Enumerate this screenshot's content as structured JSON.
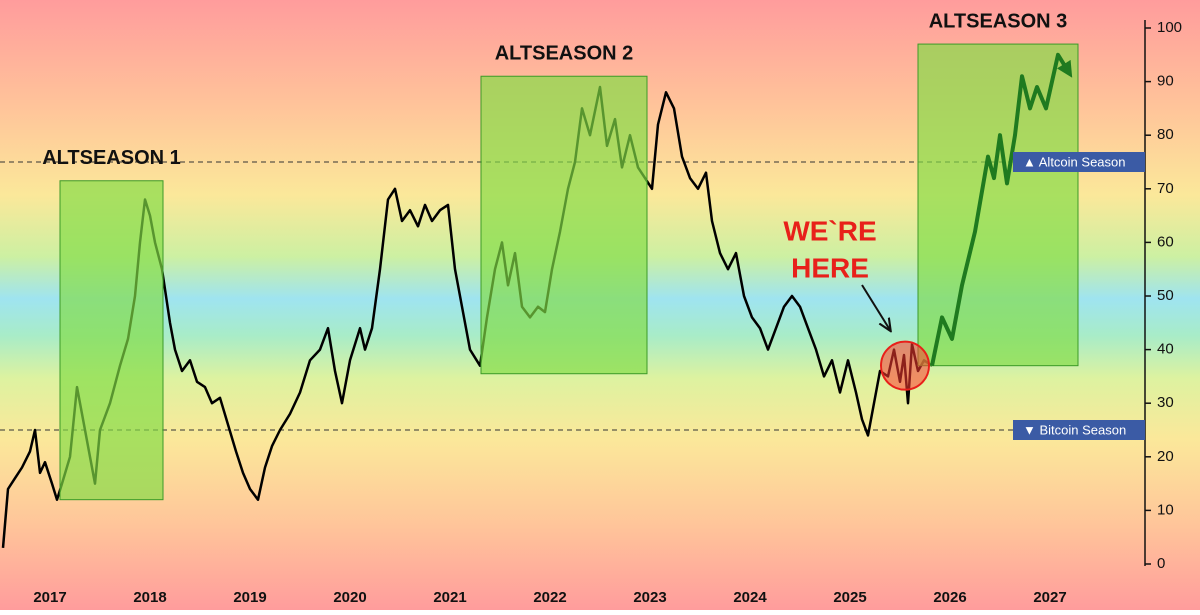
{
  "chart_data": {
    "type": "line",
    "xlim": [
      2016.5,
      2027.95
    ],
    "xticks": [
      2017,
      2018,
      2019,
      2020,
      2021,
      2022,
      2023,
      2024,
      2025,
      2026,
      2027
    ],
    "ylim": [
      0,
      100
    ],
    "yticks": [
      0,
      10,
      20,
      30,
      40,
      50,
      60,
      70,
      80,
      90,
      100
    ],
    "series": [
      {
        "color": "#000000",
        "x": [
          2016.53,
          2016.58,
          2016.65,
          2016.72,
          2016.8,
          2016.85,
          2016.9,
          2016.95,
          2017.02,
          2017.07,
          2017.12,
          2017.2,
          2017.27,
          2017.32,
          2017.38,
          2017.45,
          2017.5,
          2017.6,
          2017.7,
          2017.78,
          2017.85,
          2017.9,
          2017.95,
          2018.0,
          2018.05,
          2018.12,
          2018.2,
          2018.25,
          2018.32,
          2018.4,
          2018.47,
          2018.55,
          2018.62,
          2018.7,
          2018.78,
          2018.86,
          2018.93,
          2019.0,
          2019.08,
          2019.15,
          2019.22,
          2019.3,
          2019.4,
          2019.5,
          2019.6,
          2019.7,
          2019.78,
          2019.85,
          2019.92,
          2020.0,
          2020.1,
          2020.15,
          2020.22,
          2020.3,
          2020.38,
          2020.45,
          2020.52,
          2020.6,
          2020.68,
          2020.75,
          2020.82,
          2020.9,
          2020.98,
          2021.05,
          2021.12,
          2021.2,
          2021.3,
          2021.37,
          2021.45,
          2021.52,
          2021.58,
          2021.65,
          2021.72,
          2021.8,
          2021.88,
          2021.95,
          2022.02,
          2022.1,
          2022.18,
          2022.25,
          2022.32,
          2022.4,
          2022.5,
          2022.57,
          2022.65,
          2022.72,
          2022.8,
          2022.88,
          2022.95,
          2023.02,
          2023.08,
          2023.16,
          2023.24,
          2023.32,
          2023.4,
          2023.48,
          2023.56,
          2023.62,
          2023.7,
          2023.78,
          2023.86,
          2023.94,
          2024.02,
          2024.1,
          2024.18,
          2024.26,
          2024.34,
          2024.42,
          2024.5,
          2024.58,
          2024.66,
          2024.74,
          2024.82,
          2024.9,
          2024.98,
          2025.06,
          2025.12,
          2025.18,
          2025.24,
          2025.3,
          2025.38,
          2025.44,
          2025.5,
          2025.54,
          2025.58,
          2025.62,
          2025.68,
          2025.74,
          2025.82
        ],
        "values": [
          3,
          14,
          16,
          18,
          21,
          25,
          17,
          19,
          15,
          12,
          15,
          20,
          33,
          28,
          22,
          15,
          25,
          30,
          37,
          42,
          50,
          60,
          68,
          65,
          60,
          55,
          45,
          40,
          36,
          38,
          34,
          33,
          30,
          31,
          26,
          21,
          17,
          14,
          12,
          18,
          22,
          25,
          28,
          32,
          38,
          40,
          44,
          36,
          30,
          38,
          44,
          40,
          44,
          55,
          68,
          70,
          64,
          66,
          63,
          67,
          64,
          66,
          67,
          55,
          48,
          40,
          37,
          46,
          55,
          60,
          52,
          58,
          48,
          46,
          48,
          47,
          55,
          62,
          70,
          75,
          85,
          80,
          89,
          78,
          83,
          74,
          80,
          74,
          72,
          70,
          82,
          88,
          85,
          76,
          72,
          70,
          73,
          64,
          58,
          55,
          58,
          50,
          46,
          44,
          40,
          44,
          48,
          50,
          48,
          44,
          40,
          35,
          38,
          32,
          38,
          32,
          27,
          24,
          30,
          36,
          35,
          40,
          34,
          39,
          30,
          41,
          36,
          38,
          37
        ]
      },
      {
        "color": "#1f7a1f",
        "x": [
          2025.82,
          2025.92,
          2026.02,
          2026.12,
          2026.25,
          2026.38,
          2026.44,
          2026.5,
          2026.57,
          2026.65,
          2026.72,
          2026.8,
          2026.87,
          2026.96,
          2027.08,
          2027.18
        ],
        "values": [
          37,
          46,
          42,
          52,
          62,
          76,
          72,
          80,
          71,
          80,
          91,
          85,
          89,
          85,
          95,
          92
        ]
      }
    ],
    "regions": [
      {
        "label": "ALTSEASON 1",
        "x": [
          2017.1,
          2018.13
        ],
        "y": [
          12,
          71.5
        ]
      },
      {
        "label": "ALTSEASON 2",
        "x": [
          2021.31,
          2022.97
        ],
        "y": [
          35.5,
          91
        ]
      },
      {
        "label": "ALTSEASON 3",
        "x": [
          2025.68,
          2027.28
        ],
        "y": [
          37,
          97
        ]
      }
    ],
    "levels": [
      {
        "label": "▲  Altcoin Season",
        "value": 75
      },
      {
        "label": "▼  Bitcoin Season",
        "value": 25
      }
    ],
    "callout": {
      "lines": [
        "WE`RE",
        "HERE"
      ],
      "x": 2025.55,
      "y": 37
    }
  }
}
